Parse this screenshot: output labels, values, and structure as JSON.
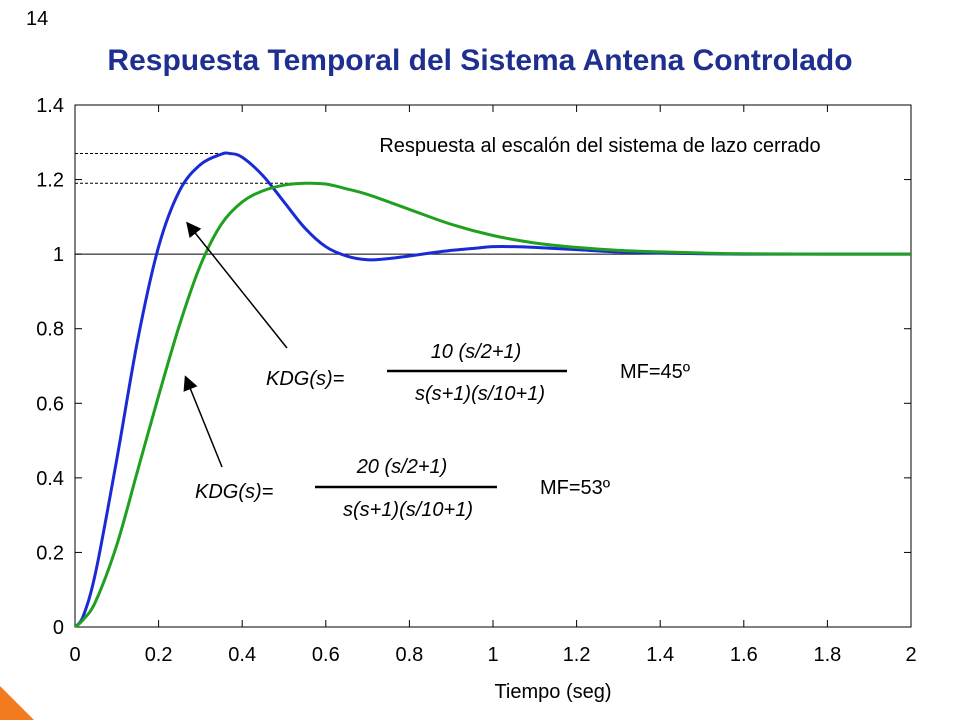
{
  "page": {
    "number": "14",
    "title": "Respuesta Temporal del Sistema Antena Controlado"
  },
  "colors": {
    "title": "#1f2f8f",
    "series1": "#1a2bd6",
    "series2": "#1fa01f",
    "accent": "#f47a20"
  },
  "chart_data": {
    "type": "line",
    "title": "",
    "xlabel": "Tiempo (seg)",
    "ylabel": "",
    "xlim": [
      0,
      2
    ],
    "ylim": [
      0,
      1.4
    ],
    "xticks": [
      "0",
      "0.2",
      "0.4",
      "0.6",
      "0.8",
      "1",
      "1.2",
      "1.4",
      "1.6",
      "1.8",
      "2"
    ],
    "yticks": [
      "0",
      "0.2",
      "0.4",
      "0.6",
      "0.8",
      "1",
      "1.2",
      "1.4"
    ],
    "grid": false,
    "reference_lines": [
      {
        "y": 1.0,
        "style": "solid",
        "x_range": [
          0,
          2
        ]
      },
      {
        "y": 1.27,
        "style": "dashed",
        "x_range": [
          0,
          0.37
        ]
      },
      {
        "y": 1.19,
        "style": "dashed",
        "x_range": [
          0,
          0.6
        ]
      }
    ],
    "series": [
      {
        "color": "#1a2bd6",
        "x": [
          0,
          0.02,
          0.05,
          0.1,
          0.15,
          0.2,
          0.25,
          0.3,
          0.35,
          0.37,
          0.4,
          0.45,
          0.5,
          0.55,
          0.6,
          0.65,
          0.7,
          0.75,
          0.8,
          0.85,
          0.9,
          0.95,
          1.0,
          1.05,
          1.1,
          1.2,
          1.3,
          1.4,
          1.5,
          1.6,
          1.8,
          2.0
        ],
        "y": [
          0,
          0.03,
          0.15,
          0.45,
          0.77,
          1.02,
          1.17,
          1.24,
          1.268,
          1.27,
          1.26,
          1.21,
          1.14,
          1.07,
          1.02,
          0.995,
          0.985,
          0.988,
          0.995,
          1.003,
          1.01,
          1.015,
          1.02,
          1.02,
          1.018,
          1.012,
          1.006,
          1.003,
          1.001,
          1.0,
          1.0,
          1.0
        ]
      },
      {
        "color": "#1fa01f",
        "x": [
          0,
          0.02,
          0.05,
          0.1,
          0.15,
          0.2,
          0.25,
          0.3,
          0.35,
          0.4,
          0.45,
          0.5,
          0.55,
          0.6,
          0.65,
          0.7,
          0.8,
          0.9,
          1.0,
          1.1,
          1.2,
          1.3,
          1.4,
          1.5,
          1.6,
          1.8,
          2.0
        ],
        "y": [
          0,
          0.02,
          0.07,
          0.22,
          0.42,
          0.62,
          0.81,
          0.97,
          1.08,
          1.14,
          1.17,
          1.185,
          1.19,
          1.188,
          1.175,
          1.16,
          1.12,
          1.08,
          1.05,
          1.03,
          1.018,
          1.01,
          1.006,
          1.003,
          1.001,
          1.0,
          1.0
        ]
      }
    ],
    "annotations": {
      "subtitle": "Respuesta al escalón del sistema de lazo cerrado",
      "eq1": {
        "lhs": "KDG(s)=",
        "num": "10 (s/2+1)",
        "den": "s(s+1)(s/10+1)",
        "mf": "MF=45º"
      },
      "eq2": {
        "lhs": "KDG(s)=",
        "num": "20 (s/2+1)",
        "den": "s(s+1)(s/10+1)",
        "mf": "MF=53º"
      }
    }
  }
}
